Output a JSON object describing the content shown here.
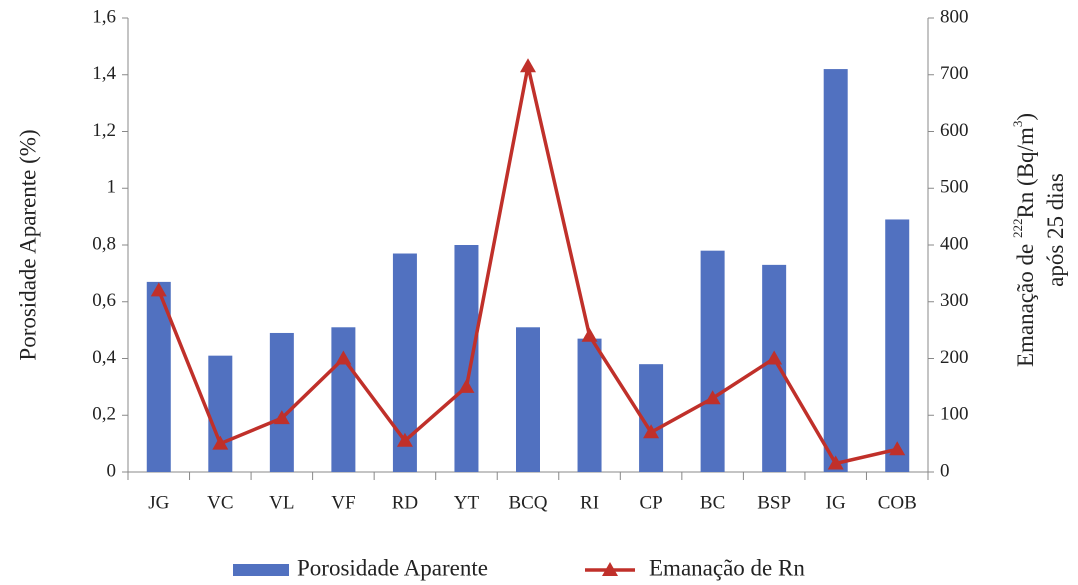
{
  "chart_data": {
    "type": "bar",
    "categories": [
      "JG",
      "VC",
      "VL",
      "VF",
      "RD",
      "YT",
      "BCQ",
      "RI",
      "CP",
      "BC",
      "BSP",
      "IG",
      "COB"
    ],
    "ylabel": "Porosidade Aparente (%)",
    "y2label": [
      [
        "Emanação de ",
        "222",
        "Rn (Bq/m",
        "3",
        ")"
      ],
      [
        "após 25 dias"
      ]
    ],
    "ylim": [
      0,
      1.6
    ],
    "yticks": [
      0,
      {
        "value": 0.2,
        "label": "0,2"
      },
      {
        "value": 0.4,
        "label": "0,4"
      },
      {
        "value": 0.6,
        "label": "0,6"
      },
      {
        "value": 0.8,
        "label": "0,8"
      },
      1,
      {
        "value": 1.2,
        "label": "1,2"
      },
      {
        "value": 1.4,
        "label": "1,4"
      },
      {
        "value": 1.6,
        "label": "1,6"
      }
    ],
    "y2lim": [
      0,
      800
    ],
    "y2ticks": [
      0,
      100,
      200,
      300,
      400,
      500,
      600,
      700,
      800
    ],
    "series": [
      {
        "name": "Porosidade Aparente",
        "type": "bar",
        "color": "#5171c0",
        "values": [
          0.67,
          0.41,
          0.49,
          0.51,
          0.77,
          0.8,
          0.51,
          0.47,
          0.38,
          0.78,
          0.73,
          1.42,
          0.89
        ]
      },
      {
        "name": "Emanação de Rn",
        "type": "line",
        "axis": "y2",
        "marker": "triangle",
        "color": "#c0302a",
        "values": [
          320,
          50,
          95,
          200,
          55,
          150,
          715,
          240,
          70,
          130,
          200,
          15,
          40
        ]
      }
    ]
  }
}
